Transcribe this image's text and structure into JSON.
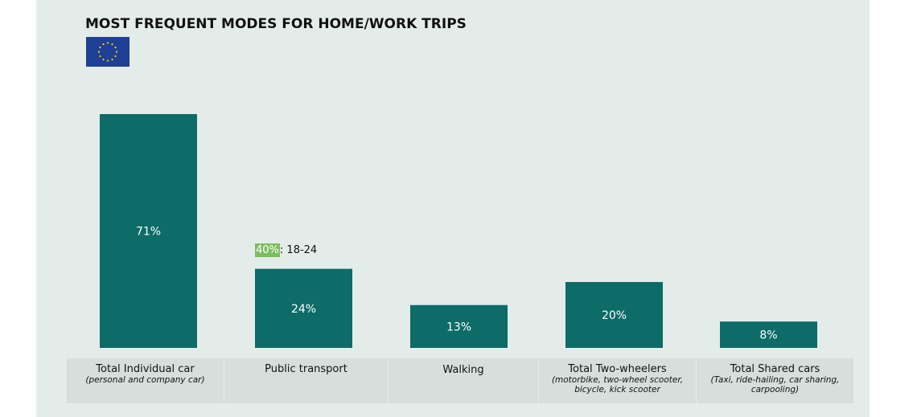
{
  "chart_data": {
    "type": "bar",
    "title": "MOST FREQUENT MODES FOR HOME/WORK TRIPS",
    "categories": [
      "Total Individual car",
      "Public transport",
      "Walking",
      "Total Two-wheelers",
      "Total Shared cars"
    ],
    "subcategories": [
      "(personal and company car)",
      "",
      "",
      "(motorbike, two-wheel scooter, bicycle, kick scooter",
      "(Taxi, ride-hailing, car sharing, carpooling)"
    ],
    "values": [
      71,
      24,
      13,
      20,
      8
    ],
    "value_labels": [
      "71%",
      "24%",
      "13%",
      "20%",
      "8%"
    ],
    "annotation": {
      "highlight": "40%",
      "text": ": 18-24"
    },
    "ylim": [
      0,
      71
    ],
    "grid": false,
    "bar_color": "#0d6b68",
    "highlight_color": "#7dbd5e"
  },
  "flag": {
    "icon": "eu-flag-icon",
    "color": "#1f3f95",
    "star_color": "#f2d700"
  }
}
